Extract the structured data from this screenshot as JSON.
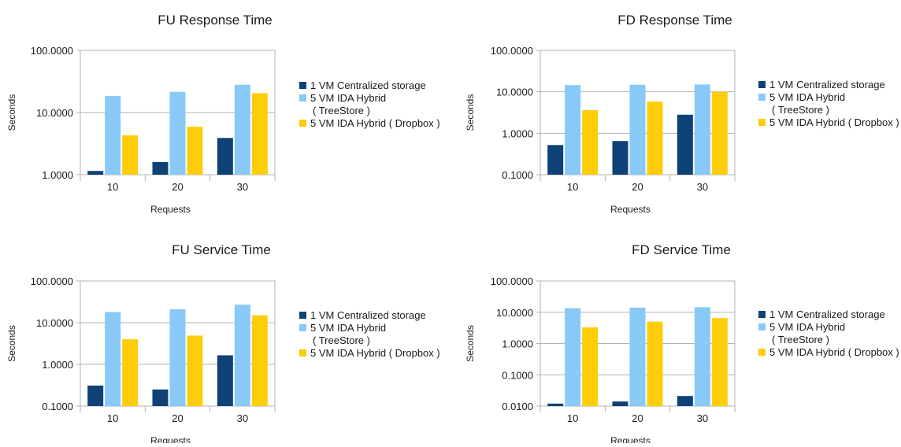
{
  "chart_data": [
    {
      "type": "bar",
      "title": "FU Response Time",
      "xlabel": "Requests",
      "ylabel": "Seconds",
      "yscale": "log",
      "ylim": [
        1,
        100
      ],
      "yticks": [
        "1.0000",
        "10.0000",
        "100.0000"
      ],
      "categories": [
        "10",
        "20",
        "30"
      ],
      "grid": true,
      "legend": "right",
      "series": [
        {
          "name": "1 VM Centralized storage",
          "values": [
            1.15,
            1.6,
            3.9
          ]
        },
        {
          "name": "5 VM IDA Hybrid ( TreeStore )",
          "name_lines": [
            "5 VM IDA Hybrid",
            "( TreeStore )"
          ],
          "values": [
            18.5,
            21.5,
            28
          ]
        },
        {
          "name": "5 VM IDA Hybrid ( Dropbox )",
          "values": [
            4.3,
            5.9,
            20.5
          ]
        }
      ]
    },
    {
      "type": "bar",
      "title": "FD Response Time",
      "xlabel": "Requests",
      "ylabel": "Seconds",
      "yscale": "log",
      "ylim": [
        0.1,
        100
      ],
      "yticks": [
        "0.1000",
        "1.0000",
        "10.0000",
        "100.0000"
      ],
      "categories": [
        "10",
        "20",
        "30"
      ],
      "grid": true,
      "legend": "right",
      "series": [
        {
          "name": "1 VM Centralized storage",
          "values": [
            0.52,
            0.65,
            2.8
          ]
        },
        {
          "name": "5 VM IDA Hybrid ( TreeStore )",
          "name_lines": [
            "5 VM IDA Hybrid",
            "( TreeStore )"
          ],
          "values": [
            14.5,
            14.8,
            15
          ]
        },
        {
          "name": "5 VM IDA Hybrid ( Dropbox )",
          "values": [
            3.6,
            5.8,
            10
          ]
        }
      ]
    },
    {
      "type": "bar",
      "title": "FU Service Time",
      "xlabel": "Requests",
      "ylabel": "Seconds",
      "yscale": "log",
      "ylim": [
        0.1,
        100
      ],
      "yticks": [
        "0.1000",
        "1.0000",
        "10.0000",
        "100.0000"
      ],
      "categories": [
        "10",
        "20",
        "30"
      ],
      "grid": true,
      "legend": "right",
      "series": [
        {
          "name": "1 VM Centralized storage",
          "values": [
            0.31,
            0.25,
            1.65
          ]
        },
        {
          "name": "5 VM IDA Hybrid ( TreeStore )",
          "name_lines": [
            "5 VM IDA Hybrid",
            "( TreeStore )"
          ],
          "values": [
            18,
            21,
            27
          ]
        },
        {
          "name": "5 VM IDA Hybrid ( Dropbox )",
          "values": [
            4.0,
            4.9,
            15
          ]
        }
      ]
    },
    {
      "type": "bar",
      "title": "FD Service Time",
      "xlabel": "Requests",
      "ylabel": "Seconds",
      "yscale": "log",
      "ylim": [
        0.01,
        100
      ],
      "yticks": [
        "0.0100",
        "0.1000",
        "1.0000",
        "10.0000",
        "100.0000"
      ],
      "categories": [
        "10",
        "20",
        "30"
      ],
      "grid": true,
      "legend": "right",
      "series": [
        {
          "name": "1 VM Centralized storage",
          "values": [
            0.012,
            0.014,
            0.021
          ]
        },
        {
          "name": "5 VM IDA Hybrid ( TreeStore )",
          "name_lines": [
            "5 VM IDA Hybrid",
            "( TreeStore )"
          ],
          "values": [
            13.5,
            14,
            14.5
          ]
        },
        {
          "name": "5 VM IDA Hybrid ( Dropbox )",
          "values": [
            3.3,
            5.0,
            6.5
          ]
        }
      ]
    }
  ],
  "colors": [
    "#0e4277",
    "#88c9f7",
    "#fdcd0a"
  ]
}
